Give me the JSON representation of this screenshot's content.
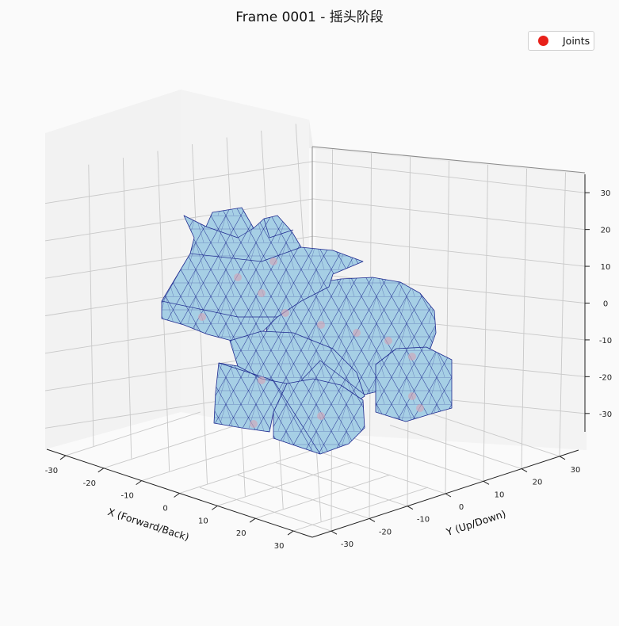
{
  "title": "Frame 0001 - 摇头阶段",
  "legend": {
    "label": "Joints",
    "marker_color": "#e8211a"
  },
  "chart_data": {
    "type": "scatter",
    "projection": "3d",
    "title": "Frame 0001 - 摇头阶段",
    "xlabel": "X (Forward/Back)",
    "ylabel": "Y (Up/Down)",
    "zlabel": "",
    "xlim": [
      -35,
      35
    ],
    "ylim": [
      -35,
      35
    ],
    "zlim": [
      -35,
      35
    ],
    "x_ticks": [
      -30,
      -20,
      -10,
      0,
      10,
      20,
      30
    ],
    "y_ticks": [
      -30,
      -20,
      -10,
      0,
      10,
      20,
      30
    ],
    "z_ticks": [
      -30,
      -20,
      -10,
      0,
      10,
      20,
      30
    ],
    "grid": true,
    "legend_position": "top-right",
    "mesh": {
      "face_color": "#a6cfe5",
      "edge_color": "#1f2a8f"
    },
    "series": [
      {
        "name": "Joints",
        "color": "#e8211a"
      }
    ]
  }
}
